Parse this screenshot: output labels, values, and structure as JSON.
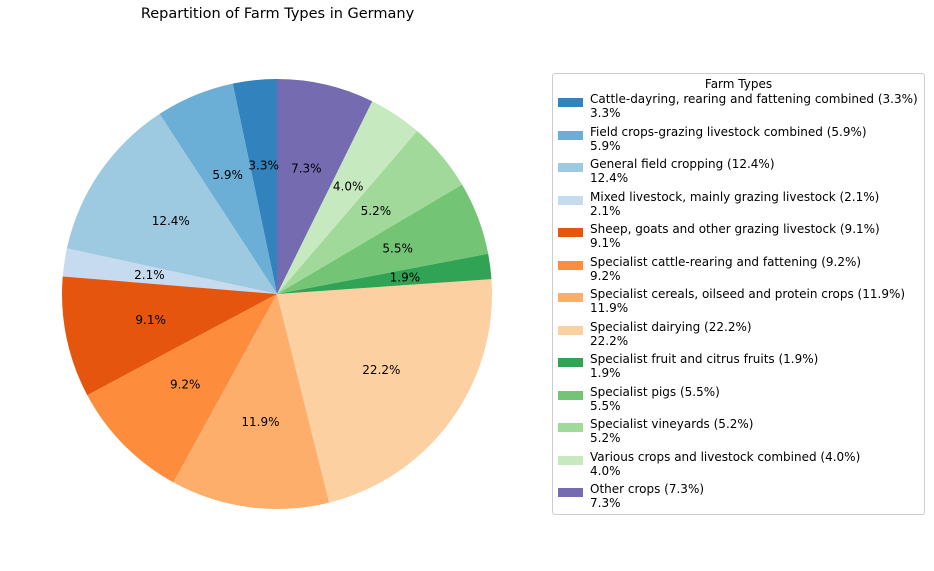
{
  "chart_data": {
    "type": "pie",
    "title": "Repartition of Farm Types in Germany",
    "legend_title": "Farm Types",
    "legend_position": "right",
    "start_angle_deg": 90,
    "direction": "counterclockwise",
    "slices": [
      {
        "name": "Cattle-dayring, rearing and fattening combined (3.3%)",
        "value": 3.3,
        "label": "3.3%",
        "color": "#3182bd"
      },
      {
        "name": "Field crops-grazing livestock combined (5.9%)",
        "value": 5.9,
        "label": "5.9%",
        "color": "#6baed6"
      },
      {
        "name": "General field cropping (12.4%)",
        "value": 12.4,
        "label": "12.4%",
        "color": "#9ecae1"
      },
      {
        "name": "Mixed livestock, mainly grazing livestock (2.1%)",
        "value": 2.1,
        "label": "2.1%",
        "color": "#c6dbef"
      },
      {
        "name": "Sheep, goats and other grazing livestock (9.1%)",
        "value": 9.1,
        "label": "9.1%",
        "color": "#e6550d"
      },
      {
        "name": "Specialist cattle-rearing and fattening (9.2%)",
        "value": 9.2,
        "label": "9.2%",
        "color": "#fd8d3c"
      },
      {
        "name": "Specialist cereals, oilseed and protein crops (11.9%)",
        "value": 11.9,
        "label": "11.9%",
        "color": "#fdae6b"
      },
      {
        "name": "Specialist dairying (22.2%)",
        "value": 22.2,
        "label": "22.2%",
        "color": "#fdd0a2"
      },
      {
        "name": "Specialist fruit and citrus fruits (1.9%)",
        "value": 1.9,
        "label": "1.9%",
        "color": "#31a354"
      },
      {
        "name": "Specialist pigs (5.5%)",
        "value": 5.5,
        "label": "5.5%",
        "color": "#74c476"
      },
      {
        "name": "Specialist vineyards (5.2%)",
        "value": 5.2,
        "label": "5.2%",
        "color": "#a1d99b"
      },
      {
        "name": "Various crops and livestock combined (4.0%)",
        "value": 4.0,
        "label": "4.0%",
        "color": "#c7e9c0"
      },
      {
        "name": "Other crops (7.3%)",
        "value": 7.3,
        "label": "7.3%",
        "color": "#756bb1"
      }
    ]
  }
}
